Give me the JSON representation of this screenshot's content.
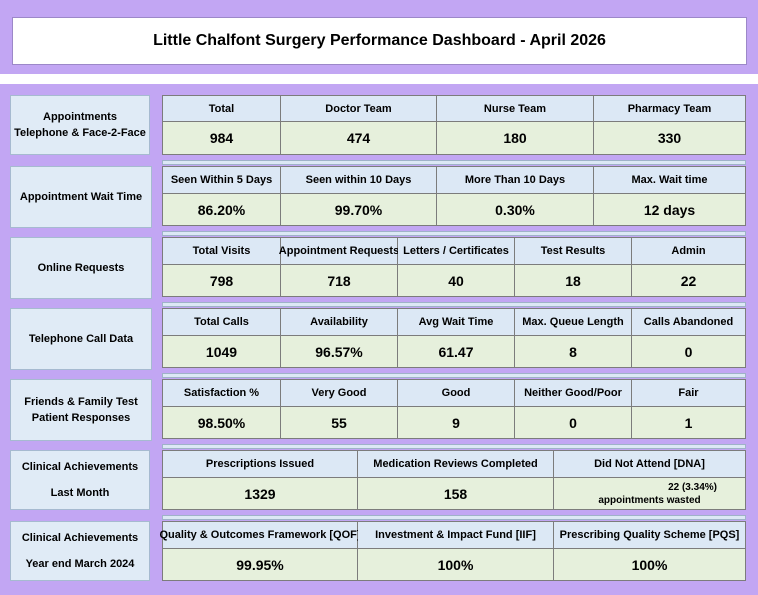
{
  "title": "Little Chalfont Surgery Performance Dashboard - April 2026",
  "sections": {
    "appointments": {
      "label": [
        "Appointments",
        "Telephone & Face-2-Face"
      ],
      "headers": [
        "Total",
        "Doctor Team",
        "Nurse Team",
        "Pharmacy Team"
      ],
      "values": [
        "984",
        "474",
        "180",
        "330"
      ]
    },
    "wait_time": {
      "label": [
        "Appointment Wait Time"
      ],
      "headers": [
        "Seen Within 5 Days",
        "Seen within 10 Days",
        "More Than 10 Days",
        "Max. Wait time"
      ],
      "values": [
        "86.20%",
        "99.70%",
        "0.30%",
        "12 days"
      ]
    },
    "online": {
      "label": [
        "Online Requests"
      ],
      "headers": [
        "Total Visits",
        "Appointment Requests",
        "Letters / Certificates",
        "Test Results",
        "Admin"
      ],
      "values": [
        "798",
        "718",
        "40",
        "18",
        "22"
      ]
    },
    "telephone": {
      "label": [
        "Telephone Call Data"
      ],
      "headers": [
        "Total Calls",
        "Availability",
        "Avg Wait Time",
        "Max. Queue Length",
        "Calls Abandoned"
      ],
      "values": [
        "1049",
        "96.57%",
        "61.47",
        "8",
        "0"
      ]
    },
    "fft": {
      "label": [
        "Friends & Family Test",
        "Patient Responses"
      ],
      "headers": [
        "Satisfaction %",
        "Very Good",
        "Good",
        "Neither Good/Poor",
        "Fair"
      ],
      "values": [
        "98.50%",
        "55",
        "9",
        "0",
        "1"
      ]
    },
    "clinical_month": {
      "label": [
        "Clinical Achievements",
        "Last Month"
      ],
      "headers": [
        "Prescriptions Issued",
        "Medication Reviews Completed",
        "Did Not Attend [DNA]"
      ],
      "values": [
        "1329",
        "158"
      ],
      "dna_line1": "22 (3.34%)",
      "dna_line2": "appointments wasted"
    },
    "clinical_year": {
      "label": [
        "Clinical Achievements",
        "Year end March 2024"
      ],
      "headers": [
        "Quality & Outcomes Framework [QOF]",
        "Investment & Impact Fund [IIF]",
        "Prescribing Quality Scheme [PQS]"
      ],
      "values": [
        "99.95%",
        "100%",
        "100%"
      ]
    }
  }
}
